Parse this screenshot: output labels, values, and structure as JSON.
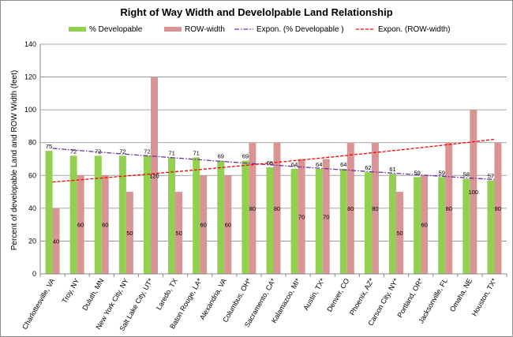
{
  "chart_data": {
    "type": "bar",
    "title": "Right of Way Width and Develolpable Land Relationship",
    "xlabel": "",
    "ylabel": "Percent of developable Land and ROW Width (feet)",
    "ylim": [
      0,
      140
    ],
    "yticks": [
      0,
      20,
      40,
      60,
      80,
      100,
      120,
      140
    ],
    "grid": true,
    "legend_position": "top",
    "categories": [
      "Charlottesville, VA",
      "Troy, NY",
      "Duluth, MN",
      "New York City, NY",
      "Salt Lake City, UT*",
      "Laredo, TX",
      "Baton Rouge, LA*",
      "Alexandria, VA",
      "Columbus, OH*",
      "Sacramento, CA*",
      "Kalamazoo, MI*",
      "Austin, TX*",
      "Denver, CO",
      "Phoenix, AZ*",
      "Carson City, NY*",
      "Portland, OR*",
      "Jacksonville, FL",
      "Omaha, NE",
      "Houston, TX*"
    ],
    "series": [
      {
        "name": "% Developable",
        "color": "#92d050",
        "values": [
          75,
          72,
          72,
          72,
          72,
          71,
          71,
          69,
          69,
          65,
          64,
          64,
          64,
          62,
          61,
          59,
          59,
          58,
          57
        ]
      },
      {
        "name": "ROW-width",
        "color": "#d99594",
        "values": [
          40,
          60,
          60,
          50,
          120,
          50,
          60,
          60,
          80,
          80,
          70,
          70,
          80,
          80,
          50,
          60,
          80,
          100,
          80
        ]
      }
    ],
    "trendlines": [
      {
        "name": "Expon. (% Developable )",
        "type": "exponential",
        "color": "#7030a0",
        "style": "dash-dot",
        "start": 76.5,
        "end": 57.5
      },
      {
        "name": "Expon. (ROW-width)",
        "type": "exponential",
        "color": "#ff0000",
        "style": "dashed",
        "start": 56,
        "end": 82
      }
    ],
    "data_labels": [
      {
        "series": "% Developable",
        "values": [
          "75",
          "72",
          "72",
          "72",
          "72",
          "71",
          "71",
          "69",
          "69",
          "65",
          "64",
          "64",
          "64",
          "62",
          "61",
          "59",
          "59",
          "58",
          "57"
        ]
      },
      {
        "series": "ROW-width",
        "values": [
          "40",
          "60",
          "60",
          "50",
          "120",
          "50",
          "60",
          "60",
          "80",
          "80",
          "70",
          "70",
          "80",
          "80",
          "50",
          "60",
          "80",
          "100",
          "80"
        ]
      }
    ]
  }
}
